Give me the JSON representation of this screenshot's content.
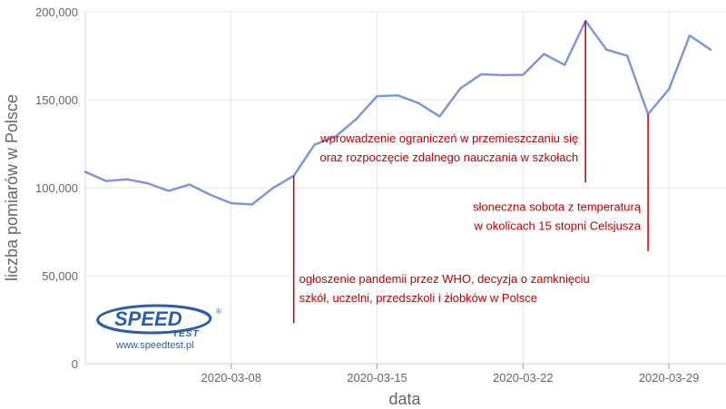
{
  "chart_data": {
    "type": "line",
    "xlabel": "data",
    "ylabel": "liczba pomiarów w Polsce",
    "ylim": [
      0,
      200000
    ],
    "yticks": [
      {
        "value": 0,
        "label": "0"
      },
      {
        "value": 50000,
        "label": "50,000"
      },
      {
        "value": 100000,
        "label": "100,000"
      },
      {
        "value": 150000,
        "label": "150,000"
      },
      {
        "value": 200000,
        "label": "200,000"
      }
    ],
    "xticks": [
      {
        "date": "2020-03-08",
        "label": "2020-03-08"
      },
      {
        "date": "2020-03-15",
        "label": "2020-03-15"
      },
      {
        "date": "2020-03-22",
        "label": "2020-03-22"
      },
      {
        "date": "2020-03-29",
        "label": "2020-03-29"
      }
    ],
    "xrange": [
      "2020-03-01",
      "2020-03-31"
    ],
    "grid": true,
    "color": "#7b93db",
    "series": [
      {
        "points": [
          {
            "x": "2020-03-01",
            "y": 109000
          },
          {
            "x": "2020-03-02",
            "y": 103800
          },
          {
            "x": "2020-03-03",
            "y": 104800
          },
          {
            "x": "2020-03-04",
            "y": 102500
          },
          {
            "x": "2020-03-05",
            "y": 98200
          },
          {
            "x": "2020-03-06",
            "y": 101800
          },
          {
            "x": "2020-03-07",
            "y": 96000
          },
          {
            "x": "2020-03-08",
            "y": 91200
          },
          {
            "x": "2020-03-09",
            "y": 90500
          },
          {
            "x": "2020-03-10",
            "y": 99800
          },
          {
            "x": "2020-03-11",
            "y": 106800
          },
          {
            "x": "2020-03-12",
            "y": 124500
          },
          {
            "x": "2020-03-13",
            "y": 129000
          },
          {
            "x": "2020-03-14",
            "y": 139000
          },
          {
            "x": "2020-03-15",
            "y": 152000
          },
          {
            "x": "2020-03-16",
            "y": 152500
          },
          {
            "x": "2020-03-17",
            "y": 148000
          },
          {
            "x": "2020-03-18",
            "y": 140500
          },
          {
            "x": "2020-03-19",
            "y": 156500
          },
          {
            "x": "2020-03-20",
            "y": 164500
          },
          {
            "x": "2020-03-21",
            "y": 164000
          },
          {
            "x": "2020-03-22",
            "y": 164200
          },
          {
            "x": "2020-03-23",
            "y": 176000
          },
          {
            "x": "2020-03-24",
            "y": 169800
          },
          {
            "x": "2020-03-25",
            "y": 194800
          },
          {
            "x": "2020-03-26",
            "y": 178500
          },
          {
            "x": "2020-03-27",
            "y": 175000
          },
          {
            "x": "2020-03-28",
            "y": 141800
          },
          {
            "x": "2020-03-29",
            "y": 156000
          },
          {
            "x": "2020-03-30",
            "y": 186500
          },
          {
            "x": "2020-03-31",
            "y": 178500
          }
        ]
      }
    ],
    "annotations": [
      {
        "id": "who-pandemic",
        "x": "2020-03-11",
        "y_from": 23000,
        "y_to": 106800,
        "text_align": "start",
        "text_anchor_y": 35000,
        "lines": [
          "ogłoszenie pandemii przez WHO, decyzja o zamknięciu",
          "szkół, uczelni, przedszkoli i żłobków w Polsce"
        ]
      },
      {
        "id": "movement-restrictions",
        "x": "2020-03-25",
        "y_from": 103000,
        "y_to": 194800,
        "text_align": "end",
        "text_anchor_y": 115000,
        "lines": [
          "wprowadzenie ograniczeń w przemieszczaniu się",
          "oraz rozpoczęcie zdalnego nauczania w szkołach"
        ]
      },
      {
        "id": "sunny-saturday",
        "x": "2020-03-28",
        "y_from": 64000,
        "y_to": 141800,
        "text_align": "end",
        "text_anchor_y": 76000,
        "lines": [
          "słoneczna sobota z temperaturą",
          "w okolicach 15 stopni Celsjusza"
        ]
      }
    ],
    "annotation_color": "#c00000"
  },
  "logo": {
    "brand": "SPEED",
    "subbrand": "TEST",
    "url": "www.speedtest.pl",
    "color": "#2c5ea8"
  }
}
